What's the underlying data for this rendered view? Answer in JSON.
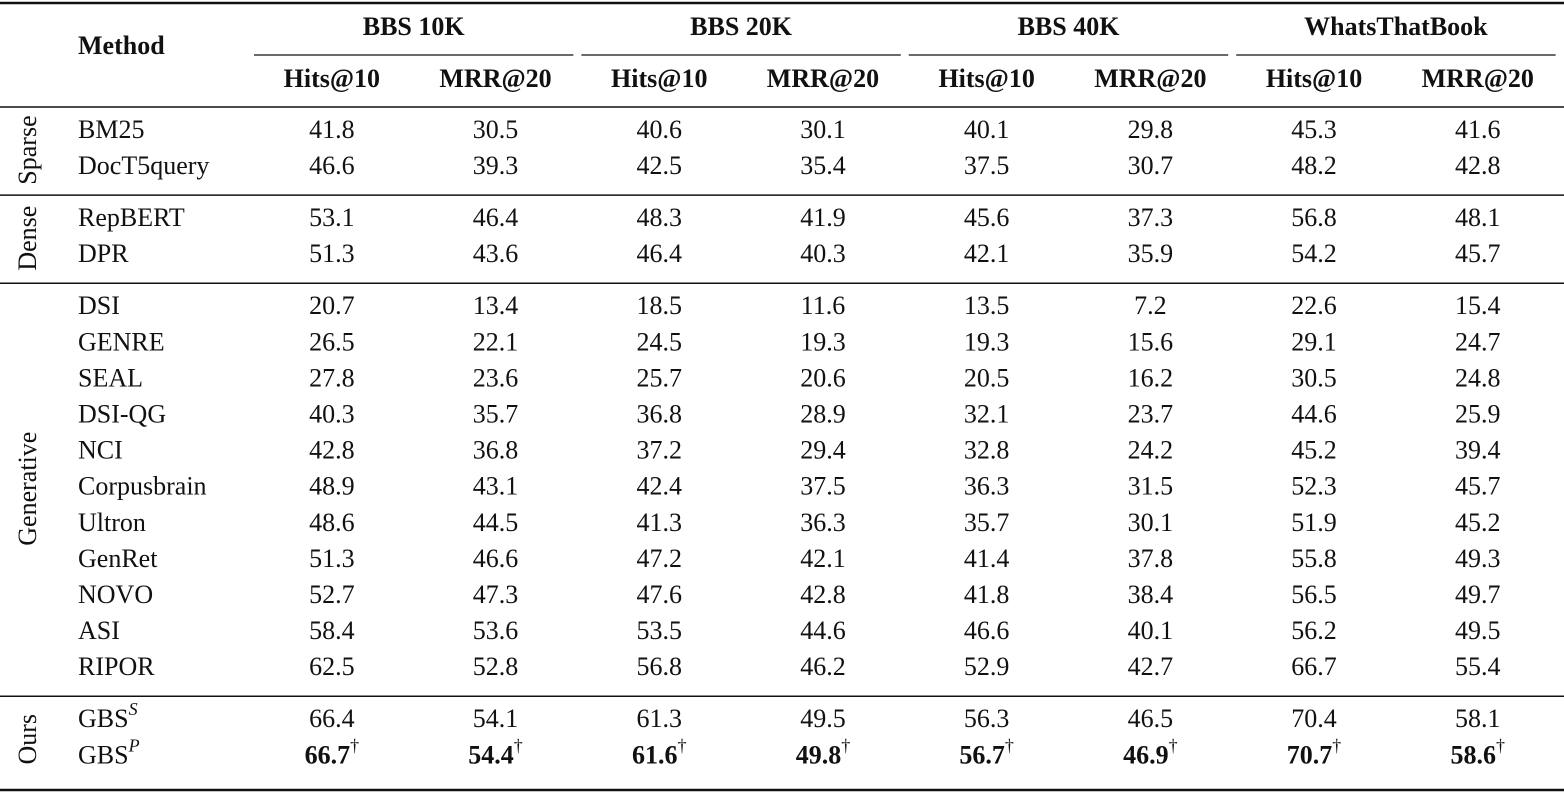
{
  "table": {
    "header": {
      "method": "Method",
      "groups": [
        "BBS 10K",
        "BBS 20K",
        "BBS 40K",
        "WhatsThatBook"
      ],
      "metrics": [
        "Hits@10",
        "MRR@20"
      ]
    },
    "sections": [
      {
        "label": "Sparse",
        "rows": [
          {
            "method": "BM25",
            "values": [
              41.8,
              30.5,
              40.6,
              30.1,
              40.1,
              29.8,
              45.3,
              41.6
            ]
          },
          {
            "method": "DocT5query",
            "values": [
              46.6,
              39.3,
              42.5,
              35.4,
              37.5,
              30.7,
              48.2,
              42.8
            ]
          }
        ]
      },
      {
        "label": "Dense",
        "rows": [
          {
            "method": "RepBERT",
            "values": [
              53.1,
              46.4,
              48.3,
              41.9,
              45.6,
              37.3,
              56.8,
              48.1
            ]
          },
          {
            "method": "DPR",
            "values": [
              51.3,
              43.6,
              46.4,
              40.3,
              42.1,
              35.9,
              54.2,
              45.7
            ]
          }
        ]
      },
      {
        "label": "Generative",
        "rows": [
          {
            "method": "DSI",
            "values": [
              20.7,
              13.4,
              18.5,
              11.6,
              13.5,
              7.2,
              22.6,
              15.4
            ]
          },
          {
            "method": "GENRE",
            "values": [
              26.5,
              22.1,
              24.5,
              19.3,
              19.3,
              15.6,
              29.1,
              24.7
            ]
          },
          {
            "method": "SEAL",
            "values": [
              27.8,
              23.6,
              25.7,
              20.6,
              20.5,
              16.2,
              30.5,
              24.8
            ]
          },
          {
            "method": "DSI-QG",
            "values": [
              40.3,
              35.7,
              36.8,
              28.9,
              32.1,
              23.7,
              44.6,
              25.9
            ]
          },
          {
            "method": "NCI",
            "values": [
              42.8,
              36.8,
              37.2,
              29.4,
              32.8,
              24.2,
              45.2,
              39.4
            ]
          },
          {
            "method": "Corpusbrain",
            "values": [
              48.9,
              43.1,
              42.4,
              37.5,
              36.3,
              31.5,
              52.3,
              45.7
            ]
          },
          {
            "method": "Ultron",
            "values": [
              48.6,
              44.5,
              41.3,
              36.3,
              35.7,
              30.1,
              51.9,
              45.2
            ]
          },
          {
            "method": "GenRet",
            "values": [
              51.3,
              46.6,
              47.2,
              42.1,
              41.4,
              37.8,
              55.8,
              49.3
            ]
          },
          {
            "method": "NOVO",
            "values": [
              52.7,
              47.3,
              47.6,
              42.8,
              41.8,
              38.4,
              56.5,
              49.7
            ]
          },
          {
            "method": "ASI",
            "values": [
              58.4,
              53.6,
              53.5,
              44.6,
              46.6,
              40.1,
              56.2,
              49.5
            ]
          },
          {
            "method": "RIPOR",
            "values": [
              62.5,
              52.8,
              56.8,
              46.2,
              52.9,
              42.7,
              66.7,
              55.4
            ]
          }
        ]
      },
      {
        "label": "Ours",
        "rows": [
          {
            "method": "GBS",
            "method_sup": "S",
            "values": [
              66.4,
              54.1,
              61.3,
              49.5,
              56.3,
              46.5,
              70.4,
              58.1
            ]
          },
          {
            "method": "GBS",
            "method_sup": "P",
            "values": [
              66.7,
              54.4,
              61.6,
              49.8,
              56.7,
              46.9,
              70.7,
              58.6
            ],
            "value_sup": "†",
            "bold": true
          }
        ]
      }
    ]
  }
}
